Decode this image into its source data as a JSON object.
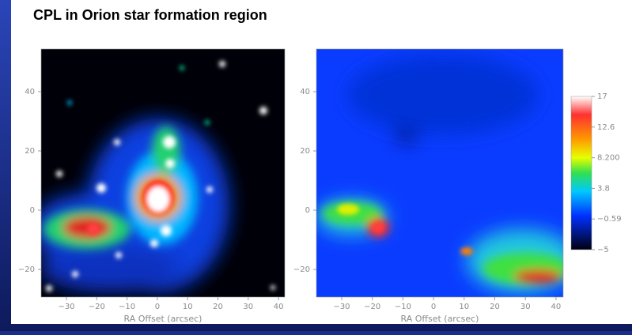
{
  "title": "CPL in Orion star formation region",
  "panels": [
    {
      "xlabel": "RA Offset (arcsec)",
      "xticks": [
        "−30",
        "−20",
        "−10",
        "0",
        "10",
        "20",
        "30",
        "40"
      ],
      "yticks": [
        "40",
        "20",
        "0",
        "−20"
      ]
    },
    {
      "xlabel": "RA Offset (arcsec)",
      "xticks": [
        "−30",
        "−20",
        "−10",
        "0",
        "10",
        "20",
        "30",
        "40"
      ],
      "yticks": [
        "40",
        "20",
        "0",
        "−20"
      ]
    }
  ],
  "colorbar": {
    "ticks": [
      "17",
      "12.6",
      "8.200",
      "3.8",
      "−0.59",
      "−5"
    ]
  }
}
